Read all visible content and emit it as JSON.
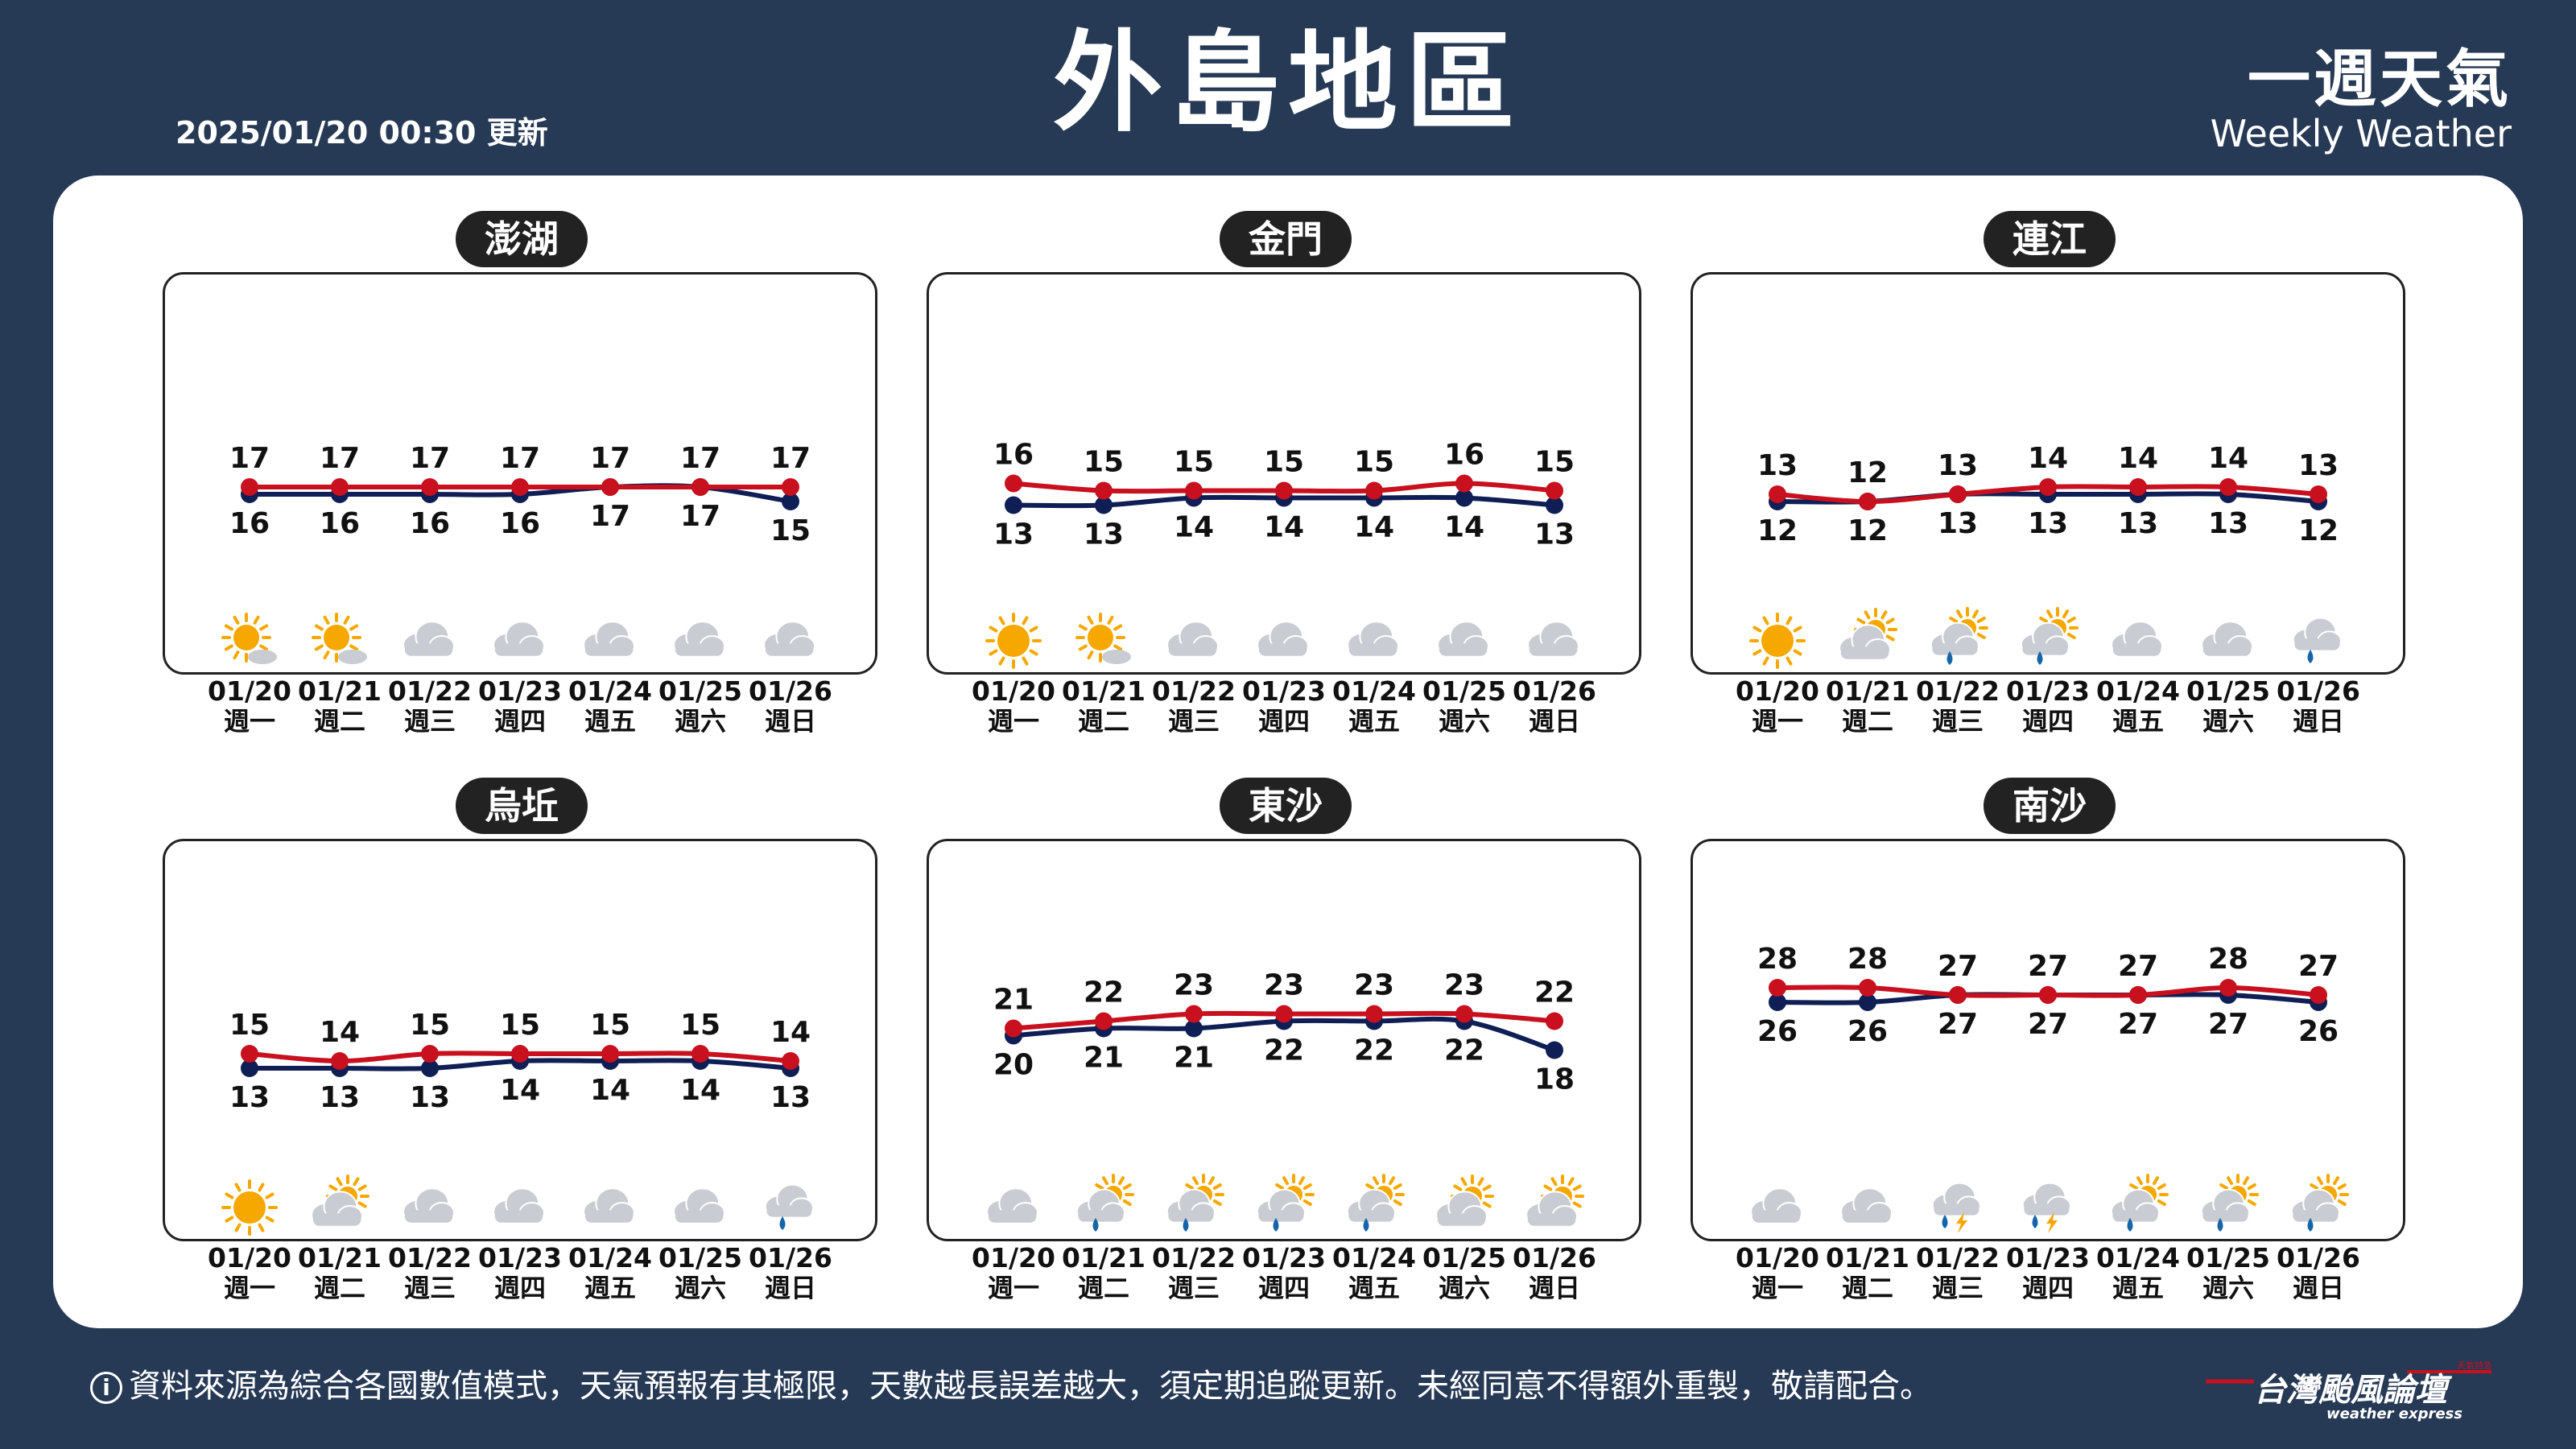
{
  "header": {
    "update_time": "2025/01/20 00:30 更新",
    "title": "外島地區",
    "brand_zh": "一週天氣",
    "brand_en": "Weekly Weather"
  },
  "colors": {
    "high": "#C8101E",
    "low": "#0F1F55",
    "background": "#263955"
  },
  "days": [
    {
      "date": "01/20",
      "weekday": "週一"
    },
    {
      "date": "01/21",
      "weekday": "週二"
    },
    {
      "date": "01/22",
      "weekday": "週三"
    },
    {
      "date": "01/23",
      "weekday": "週四"
    },
    {
      "date": "01/24",
      "weekday": "週五"
    },
    {
      "date": "01/25",
      "weekday": "週六"
    },
    {
      "date": "01/26",
      "weekday": "週日"
    }
  ],
  "regions": [
    {
      "name": "澎湖",
      "high": [
        17,
        17,
        17,
        17,
        17,
        17,
        17
      ],
      "low": [
        16,
        16,
        16,
        16,
        17,
        17,
        15
      ],
      "icons": [
        "sun-cloud",
        "sun-cloud",
        "cloud",
        "cloud",
        "cloud",
        "cloud",
        "cloud"
      ]
    },
    {
      "name": "金門",
      "high": [
        16,
        15,
        15,
        15,
        15,
        16,
        15
      ],
      "low": [
        13,
        13,
        14,
        14,
        14,
        14,
        13
      ],
      "icons": [
        "sun",
        "sun-cloud",
        "cloud",
        "cloud",
        "cloud",
        "cloud",
        "cloud"
      ]
    },
    {
      "name": "連江",
      "high": [
        13,
        12,
        13,
        14,
        14,
        14,
        13
      ],
      "low": [
        12,
        12,
        13,
        13,
        13,
        13,
        12
      ],
      "icons": [
        "sun",
        "partly-cloudy",
        "sun-cloud-rain",
        "sun-cloud-rain",
        "cloud",
        "cloud",
        "cloud-rain"
      ]
    },
    {
      "name": "烏坵",
      "high": [
        15,
        14,
        15,
        15,
        15,
        15,
        14
      ],
      "low": [
        13,
        13,
        13,
        14,
        14,
        14,
        13
      ],
      "icons": [
        "sun",
        "partly-cloudy",
        "cloud",
        "cloud",
        "cloud",
        "cloud",
        "cloud-rain"
      ]
    },
    {
      "name": "東沙",
      "high": [
        21,
        22,
        23,
        23,
        23,
        23,
        22
      ],
      "low": [
        20,
        21,
        21,
        22,
        22,
        22,
        18
      ],
      "icons": [
        "cloud",
        "sun-cloud-rain",
        "sun-cloud-rain",
        "sun-cloud-rain",
        "sun-cloud-rain",
        "partly-cloudy",
        "partly-cloudy"
      ]
    },
    {
      "name": "南沙",
      "high": [
        28,
        28,
        27,
        27,
        27,
        28,
        27
      ],
      "low": [
        26,
        26,
        27,
        27,
        27,
        27,
        26
      ],
      "icons": [
        "cloud",
        "cloud",
        "thunder",
        "thunder",
        "sun-cloud-rain",
        "sun-cloud-rain",
        "sun-cloud-rain"
      ]
    }
  ],
  "footer": {
    "disclaimer": "資料來源為綜合各國數值模式，天氣預報有其極限，天數越長誤差越大，須定期追蹤更新。未經同意不得額外重製，敬請配合。",
    "logo_text": "台灣颱風論壇",
    "logo_sub": "weather express",
    "logo_tag": "天氣特急"
  }
}
